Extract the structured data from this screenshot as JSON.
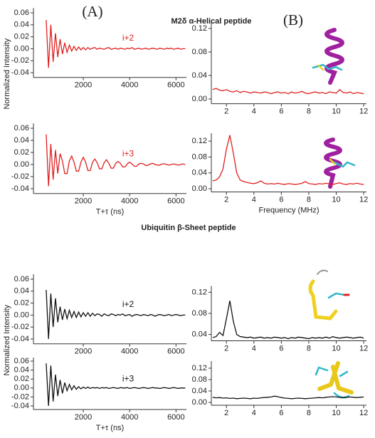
{
  "panel_labels": [
    "(A)",
    "(B)"
  ],
  "section_titles": [
    "M2δ α-Helical peptide",
    "Ubiquitin β-Sheet peptide"
  ],
  "chart_data": [
    {
      "type": "line",
      "ylabel": "Normalized Intensity",
      "annotation": "i+2",
      "x": [
        400,
        500,
        600,
        700,
        800,
        900,
        1000,
        1100,
        1200,
        1300,
        1400,
        1500,
        1600,
        1700,
        1800,
        1900,
        2000,
        2100,
        2200,
        2300,
        2400,
        2500,
        2600,
        2700,
        2800,
        2900,
        3000,
        3100,
        3200,
        3300,
        3400,
        3500,
        3600,
        3700,
        3800,
        3900,
        4000,
        4100,
        4200,
        4300,
        4400,
        4500,
        4600,
        4700,
        4800,
        4900,
        5000,
        5100,
        5200,
        5300,
        5400,
        5500,
        5600,
        5700,
        5800,
        5900,
        6000,
        6100,
        6200,
        6300,
        6400
      ],
      "series": [
        {
          "color": "#e02020",
          "values": [
            0.048,
            -0.032,
            0.04,
            -0.022,
            0.026,
            -0.014,
            0.016,
            -0.009,
            0.01,
            -0.006,
            0.006,
            -0.004,
            0.004,
            -0.003,
            0.003,
            -0.002,
            0.002,
            -0.002,
            0.002,
            -0.001,
            0.001,
            0.002,
            -0.001,
            0.001,
            0,
            -0.001,
            0.001,
            0.002,
            -0.001,
            0,
            0.001,
            -0.001,
            0.001,
            0,
            -0.001,
            0.001,
            0,
            0.002,
            -0.001,
            0,
            0.001,
            -0.001,
            0,
            0.001,
            -0.001,
            0,
            0.001,
            0,
            -0.001,
            0.001,
            0,
            -0.001,
            0.001,
            0,
            0.001,
            -0.001,
            0,
            0.001,
            -0.001,
            0,
            0
          ]
        }
      ],
      "xlim": [
        -150,
        6450
      ],
      "xticks": [
        2000,
        4000,
        6000
      ],
      "ylim": [
        -0.048,
        0.068
      ],
      "yticks": [
        -0.04,
        -0.02,
        {
          "value": 0,
          "label": "0.00"
        },
        0.02,
        0.04,
        0.06
      ]
    },
    {
      "type": "line",
      "annotation": "i+3",
      "xlabel": "T+τ (ns)",
      "x": [
        400,
        500,
        600,
        700,
        800,
        900,
        1000,
        1100,
        1200,
        1300,
        1400,
        1500,
        1600,
        1700,
        1800,
        1900,
        2000,
        2100,
        2200,
        2300,
        2400,
        2500,
        2600,
        2700,
        2800,
        2900,
        3000,
        3100,
        3200,
        3300,
        3400,
        3500,
        3600,
        3700,
        3800,
        3900,
        4000,
        4100,
        4200,
        4300,
        4400,
        4500,
        4600,
        4700,
        4800,
        4900,
        5000,
        5100,
        5200,
        5300,
        5400,
        5500,
        5600,
        5700,
        5800,
        5900,
        6000,
        6100,
        6200,
        6300,
        6400
      ],
      "series": [
        {
          "color": "#e02020",
          "values": [
            0.05,
            -0.036,
            0.034,
            -0.025,
            0.024,
            -0.015,
            0.018,
            0.006,
            -0.015,
            -0.015,
            0.006,
            0.014,
            0.004,
            -0.011,
            -0.011,
            0.004,
            0.012,
            0.004,
            -0.01,
            -0.01,
            0.004,
            0.009,
            0.003,
            -0.007,
            -0.007,
            0.003,
            0.008,
            0.002,
            -0.006,
            -0.006,
            0.002,
            0.005,
            0.002,
            -0.004,
            -0.004,
            0.001,
            0.004,
            0.001,
            -0.003,
            -0.003,
            0.001,
            0.002,
            0.001,
            -0.002,
            -0.001,
            0.001,
            0.002,
            0,
            -0.001,
            -0.001,
            0.001,
            0.001,
            0,
            -0.001,
            0,
            0.001,
            0,
            -0.001,
            0,
            0.001,
            0
          ]
        }
      ],
      "xlim": [
        -150,
        6450
      ],
      "xticks": [
        2000,
        4000,
        6000
      ],
      "ylim": [
        -0.048,
        0.068
      ],
      "yticks": [
        -0.04,
        -0.02,
        {
          "value": 0,
          "label": "0.00"
        },
        0.02,
        0.04,
        0.06
      ]
    },
    {
      "type": "line",
      "ylabel": "Normalized Intensity",
      "annotation": "i+2",
      "x": [
        400,
        500,
        600,
        700,
        800,
        900,
        1000,
        1100,
        1200,
        1300,
        1400,
        1500,
        1600,
        1700,
        1800,
        1900,
        2000,
        2100,
        2200,
        2300,
        2400,
        2500,
        2600,
        2700,
        2800,
        2900,
        3000,
        3100,
        3200,
        3300,
        3400,
        3500,
        3600,
        3700,
        3800,
        3900,
        4000,
        4100,
        4200,
        4300,
        4400,
        4500,
        4600,
        4700,
        4800,
        4900,
        5000,
        5100,
        5200,
        5300,
        5400,
        5500,
        5600,
        5700,
        5800,
        5900,
        6000,
        6100,
        6200,
        6300,
        6400
      ],
      "series": [
        {
          "color": "#111111",
          "values": [
            0.042,
            -0.04,
            0.036,
            -0.02,
            0.028,
            -0.012,
            0.014,
            -0.008,
            0.01,
            -0.006,
            0.008,
            -0.004,
            0.006,
            -0.004,
            0.005,
            -0.003,
            0.004,
            -0.002,
            0.004,
            -0.002,
            0.003,
            -0.001,
            0.002,
            0.001,
            -0.002,
            0.002,
            0,
            -0.001,
            0.002,
            0.001,
            -0.001,
            0.001,
            0,
            0.002,
            -0.001,
            0,
            0.001,
            -0.002,
            0,
            0.001,
            0,
            -0.001,
            0.001,
            0,
            -0.001,
            0.001,
            0,
            -0.002,
            0,
            0.001,
            0,
            -0.001,
            0,
            0.001,
            -0.001,
            0,
            0.001,
            0,
            -0.001,
            0,
            0
          ]
        }
      ],
      "xlim": [
        -150,
        6450
      ],
      "xticks": [
        2000,
        4000,
        6000
      ],
      "ylim": [
        -0.048,
        0.068
      ],
      "yticks": [
        -0.04,
        -0.02,
        {
          "value": 0,
          "label": "0.00"
        },
        0.02,
        0.04,
        0.06
      ]
    },
    {
      "type": "line",
      "annotation": "i+3",
      "xlabel": "T+τ (ns)",
      "x": [
        400,
        500,
        600,
        700,
        800,
        900,
        1000,
        1100,
        1200,
        1300,
        1400,
        1500,
        1600,
        1700,
        1800,
        1900,
        2000,
        2100,
        2200,
        2300,
        2400,
        2500,
        2600,
        2700,
        2800,
        2900,
        3000,
        3100,
        3200,
        3300,
        3400,
        3500,
        3600,
        3700,
        3800,
        3900,
        4000,
        4100,
        4200,
        4300,
        4400,
        4500,
        4600,
        4700,
        4800,
        4900,
        5000,
        5100,
        5200,
        5300,
        5400,
        5500,
        5600,
        5700,
        5800,
        5900,
        6000,
        6100,
        6200,
        6300,
        6400
      ],
      "series": [
        {
          "color": "#111111",
          "values": [
            0.055,
            -0.04,
            0.05,
            -0.03,
            0.03,
            -0.018,
            0.018,
            -0.012,
            0.012,
            -0.006,
            0.008,
            -0.004,
            0.005,
            -0.003,
            0.003,
            -0.002,
            0.002,
            -0.001,
            0.002,
            -0.001,
            0.001,
            0,
            0.001,
            -0.001,
            0.001,
            0,
            0.001,
            -0.001,
            0,
            0.001,
            0,
            -0.001,
            0.001,
            0,
            0,
            0.001,
            -0.001,
            0,
            0.001,
            0,
            -0.001,
            0,
            0.001,
            0,
            -0.001,
            0,
            0.001,
            0,
            0,
            -0.001,
            0,
            0.001,
            0,
            -0.001,
            0,
            0.001,
            0,
            -0.001,
            0,
            0,
            0
          ]
        }
      ],
      "xlim": [
        -150,
        6450
      ],
      "xticks": [
        2000,
        4000,
        6000
      ],
      "ylim": [
        -0.048,
        0.068
      ],
      "yticks": [
        -0.04,
        -0.02,
        {
          "value": 0,
          "label": "0.00"
        },
        0.02,
        0.04,
        0.06
      ]
    },
    {
      "type": "line",
      "x": [
        1,
        1.25,
        1.5,
        1.75,
        2,
        2.25,
        2.5,
        2.75,
        3,
        3.25,
        3.5,
        3.75,
        4,
        4.25,
        4.5,
        4.75,
        5,
        5.25,
        5.5,
        5.75,
        6,
        6.25,
        6.5,
        6.75,
        7,
        7.25,
        7.5,
        7.75,
        8,
        8.25,
        8.5,
        8.75,
        9,
        9.25,
        9.5,
        9.75,
        10,
        10.25,
        10.5,
        10.75,
        11,
        11.25,
        11.5,
        11.75,
        12
      ],
      "series": [
        {
          "color": "#e02020",
          "values": [
            0.016,
            0.018,
            0.015,
            0.014,
            0.016,
            0.013,
            0.012,
            0.014,
            0.011,
            0.013,
            0.012,
            0.01,
            0.012,
            0.011,
            0.01,
            0.012,
            0.011,
            0.009,
            0.011,
            0.012,
            0.01,
            0.011,
            0.009,
            0.012,
            0.01,
            0.011,
            0.013,
            0.01,
            0.009,
            0.011,
            0.012,
            0.01,
            0.011,
            0.009,
            0.012,
            0.011,
            0.01,
            0.016,
            0.011,
            0.01,
            0.012,
            0.009,
            0.011,
            0.01,
            0.009
          ]
        }
      ],
      "xlim": [
        0.9,
        12.2
      ],
      "xticks": [
        2,
        4,
        6,
        8,
        10,
        12
      ],
      "ylim": [
        -0.008,
        0.132
      ],
      "yticks": [
        {
          "value": 0,
          "label": "0.00"
        },
        0.04,
        0.08,
        0.12
      ]
    },
    {
      "type": "line",
      "xlabel": "Frequency (MHz)",
      "x": [
        1,
        1.25,
        1.5,
        1.75,
        2,
        2.25,
        2.5,
        2.75,
        3,
        3.25,
        3.5,
        3.75,
        4,
        4.25,
        4.5,
        4.75,
        5,
        5.25,
        5.5,
        5.75,
        6,
        6.25,
        6.5,
        6.75,
        7,
        7.25,
        7.5,
        7.75,
        8,
        8.25,
        8.5,
        8.75,
        9,
        9.25,
        9.5,
        9.75,
        10,
        10.25,
        10.5,
        10.75,
        11,
        11.25,
        11.5,
        11.75,
        12
      ],
      "series": [
        {
          "color": "#e02020",
          "values": [
            0.02,
            0.022,
            0.03,
            0.05,
            0.1,
            0.135,
            0.09,
            0.04,
            0.022,
            0.018,
            0.016,
            0.014,
            0.013,
            0.015,
            0.02,
            0.014,
            0.012,
            0.013,
            0.012,
            0.014,
            0.012,
            0.011,
            0.013,
            0.012,
            0.011,
            0.012,
            0.014,
            0.018,
            0.013,
            0.012,
            0.011,
            0.013,
            0.012,
            0.014,
            0.012,
            0.011,
            0.013,
            0.015,
            0.012,
            0.011,
            0.013,
            0.012,
            0.014,
            0.012,
            0.011
          ]
        }
      ],
      "xlim": [
        0.9,
        12.2
      ],
      "xticks": [
        2,
        4,
        6,
        8,
        10,
        12
      ],
      "ylim": [
        -0.008,
        0.14
      ],
      "yticks": [
        {
          "value": 0,
          "label": "0.00"
        },
        0.04,
        0.08,
        0.12
      ]
    },
    {
      "type": "line",
      "x": [
        1,
        1.25,
        1.5,
        1.75,
        2,
        2.25,
        2.5,
        2.75,
        3,
        3.25,
        3.5,
        3.75,
        4,
        4.25,
        4.5,
        4.75,
        5,
        5.25,
        5.5,
        5.75,
        6,
        6.25,
        6.5,
        6.75,
        7,
        7.25,
        7.5,
        7.75,
        8,
        8.25,
        8.5,
        8.75,
        9,
        9.25,
        9.5,
        9.75,
        10,
        10.25,
        10.5,
        10.75,
        11,
        11.25,
        11.5,
        11.75,
        12
      ],
      "series": [
        {
          "color": "#111111",
          "values": [
            0.034,
            0.036,
            0.044,
            0.038,
            0.07,
            0.104,
            0.065,
            0.04,
            0.036,
            0.035,
            0.034,
            0.035,
            0.033,
            0.034,
            0.035,
            0.033,
            0.034,
            0.033,
            0.035,
            0.034,
            0.033,
            0.034,
            0.032,
            0.034,
            0.033,
            0.035,
            0.034,
            0.033,
            0.032,
            0.034,
            0.033,
            0.034,
            0.033,
            0.035,
            0.033,
            0.036,
            0.034,
            0.033,
            0.034,
            0.035,
            0.034,
            0.033,
            0.034,
            0.035,
            0.033
          ]
        }
      ],
      "xlim": [
        0.9,
        12.2
      ],
      "xticks": [
        2,
        4,
        6,
        8,
        10,
        12
      ],
      "ylim": [
        0.028,
        0.132
      ],
      "yticks": [
        0.04,
        0.08,
        0.12
      ]
    },
    {
      "type": "line",
      "x": [
        1,
        1.25,
        1.5,
        1.75,
        2,
        2.25,
        2.5,
        2.75,
        3,
        3.25,
        3.5,
        3.75,
        4,
        4.25,
        4.5,
        4.75,
        5,
        5.25,
        5.5,
        5.75,
        6,
        6.25,
        6.5,
        6.75,
        7,
        7.25,
        7.5,
        7.75,
        8,
        8.25,
        8.5,
        8.75,
        9,
        9.25,
        9.5,
        9.75,
        10,
        10.25,
        10.5,
        10.75,
        11,
        11.25,
        11.5,
        11.75,
        12
      ],
      "series": [
        {
          "color": "#111111",
          "values": [
            0.018,
            0.016,
            0.017,
            0.015,
            0.016,
            0.014,
            0.015,
            0.013,
            0.014,
            0.015,
            0.014,
            0.013,
            0.015,
            0.014,
            0.016,
            0.017,
            0.018,
            0.019,
            0.022,
            0.02,
            0.017,
            0.015,
            0.014,
            0.013,
            0.014,
            0.015,
            0.014,
            0.013,
            0.014,
            0.015,
            0.016,
            0.017,
            0.016,
            0.018,
            0.019,
            0.02,
            0.019,
            0.018,
            0.017,
            0.018,
            0.019,
            0.018,
            0.017,
            0.018,
            0.019
          ]
        }
      ],
      "xlim": [
        0.9,
        12.2
      ],
      "xticks": [
        2,
        4,
        6,
        8,
        10,
        12
      ],
      "ylim": [
        -0.01,
        0.145
      ],
      "yticks": [
        {
          "value": 0,
          "label": "0.00"
        },
        0.04,
        0.08,
        0.12
      ]
    }
  ]
}
